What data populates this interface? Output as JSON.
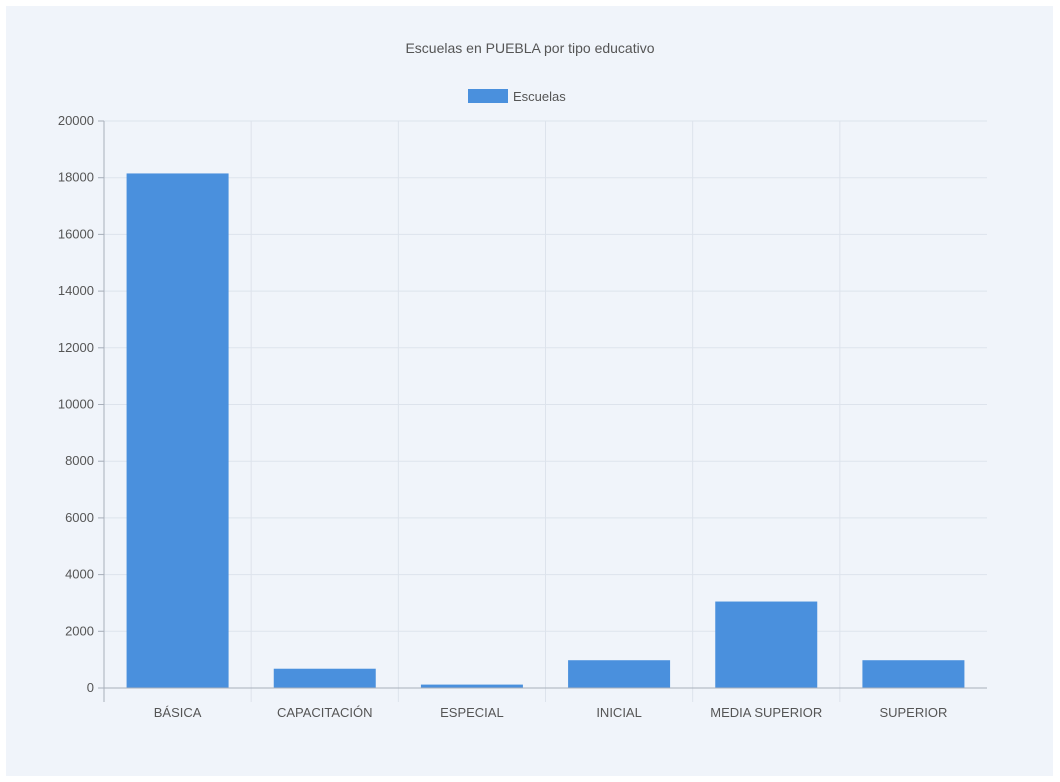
{
  "colors": {
    "bar": "#4a90dd",
    "grid": "#dde3ec",
    "axis": "#a9b0bb",
    "text": "#555555",
    "background": "#f0f4fa"
  },
  "chart_data": {
    "type": "bar",
    "title": "Escuelas en PUEBLA por tipo educativo",
    "xlabel": "",
    "ylabel": "",
    "categories": [
      "BÁSICA",
      "CAPACITACIÓN",
      "ESPECIAL",
      "INICIAL",
      "MEDIA SUPERIOR",
      "SUPERIOR"
    ],
    "series": [
      {
        "name": "Escuelas",
        "values": [
          18150,
          680,
          120,
          980,
          3050,
          980
        ]
      }
    ],
    "ylim": [
      0,
      20000
    ],
    "yticks": [
      0,
      2000,
      4000,
      6000,
      8000,
      10000,
      12000,
      14000,
      16000,
      18000,
      20000
    ],
    "grid": true,
    "legend_position": "top-center"
  }
}
